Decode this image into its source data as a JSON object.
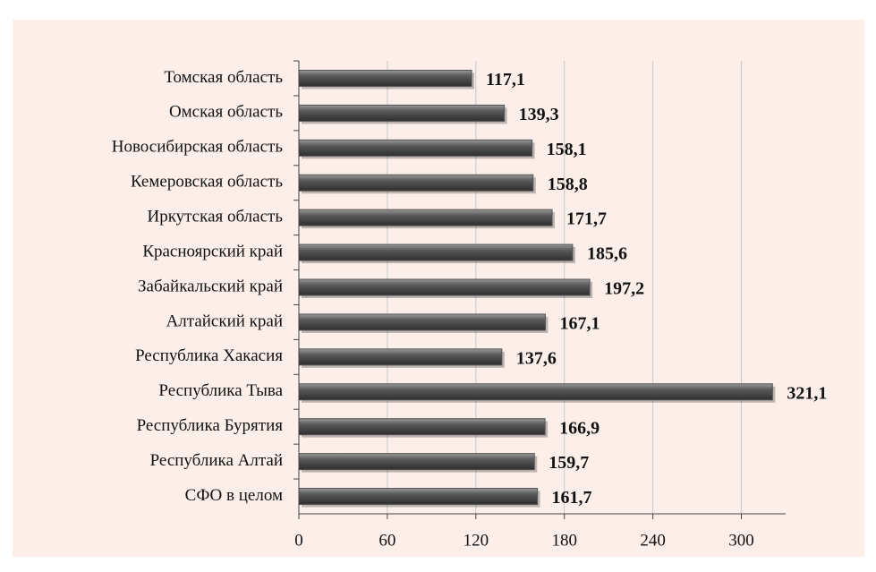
{
  "chart_data": {
    "type": "hbar",
    "categories": [
      "Томская область",
      "Омская область",
      "Новосибирская область",
      "Кемеровская область",
      "Иркутская область",
      "Красноярский край",
      "Забайкальский край",
      "Алтайский край",
      "Республика Хакасия",
      "Республика Тыва",
      "Республика Бурятия",
      "Республика Алтай",
      "СФО в целом"
    ],
    "values": [
      117.1,
      139.3,
      158.1,
      158.8,
      171.7,
      185.6,
      197.2,
      167.1,
      137.6,
      321.1,
      166.9,
      159.7,
      161.7
    ],
    "value_labels": [
      "117,1",
      "139,3",
      "158,1",
      "158,8",
      "171,7",
      "185,6",
      "197,2",
      "167,1",
      "137,6",
      "321,1",
      "166,9",
      "159,7",
      "161,7"
    ],
    "color": "#555555",
    "xlim": [
      0,
      330
    ],
    "xticks": [
      0,
      60,
      120,
      180,
      240,
      300
    ],
    "grid": true
  }
}
